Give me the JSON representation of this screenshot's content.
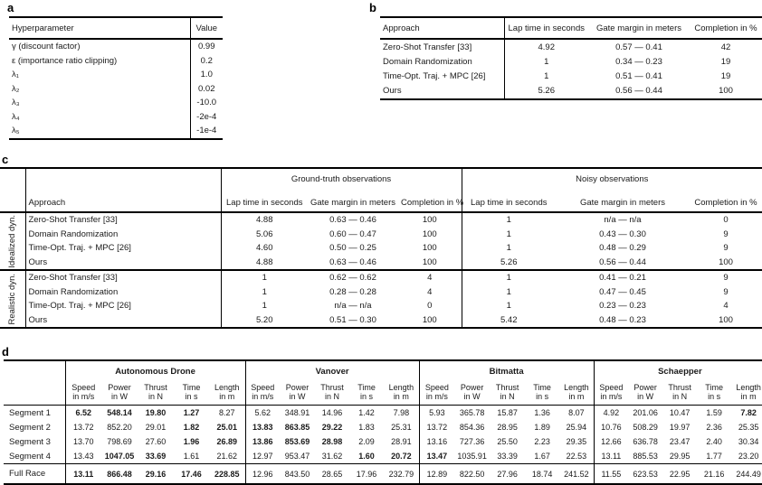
{
  "colors": {
    "text": "#1a1a1a",
    "rule": "#000000",
    "background": "#ffffff"
  },
  "panel_a": {
    "label": "a",
    "columns": [
      "Hyperparameter",
      "Value"
    ],
    "rows": [
      {
        "param": "γ (discount factor)",
        "value": "0.99"
      },
      {
        "param": "ε (importance ratio clipping)",
        "value": "0.2"
      },
      {
        "param": "λ₁",
        "value": "1.0"
      },
      {
        "param": "λ₂",
        "value": "0.02"
      },
      {
        "param": "λ₃",
        "value": "-10.0"
      },
      {
        "param": "λ₄",
        "value": "-2e-4"
      },
      {
        "param": "λ₅",
        "value": "-1e-4"
      }
    ]
  },
  "panel_b": {
    "label": "b",
    "columns": [
      "Approach",
      "Lap time in seconds",
      "Gate margin in meters",
      "Completion in %"
    ],
    "rows": [
      {
        "approach": "Zero-Shot Transfer [33]",
        "lap": "4.92",
        "gate": "0.57 — 0.41",
        "completion": "42"
      },
      {
        "approach": "Domain Randomization",
        "lap": "1",
        "gate": "0.34 — 0.23",
        "completion": "19"
      },
      {
        "approach": "Time-Opt. Traj. + MPC [26]",
        "lap": "1",
        "gate": "0.51 — 0.41",
        "completion": "19"
      },
      {
        "approach": "Ours",
        "lap": "5.26",
        "gate": "0.56 — 0.44",
        "completion": "100"
      }
    ]
  },
  "panel_c": {
    "label": "c",
    "approach_header": "Approach",
    "groups": [
      "Ground-truth observations",
      "Noisy observations"
    ],
    "sub_columns": [
      "Lap time in seconds",
      "Gate margin in meters",
      "Completion in %"
    ],
    "sections": [
      {
        "name": "Idealized dyn.",
        "rows": [
          {
            "approach": "Zero-Shot Transfer [33]",
            "gt": [
              "4.88",
              "0.63 — 0.46",
              "100"
            ],
            "noisy": [
              "1",
              "n/a — n/a",
              "0"
            ]
          },
          {
            "approach": "Domain Randomization",
            "gt": [
              "5.06",
              "0.60 — 0.47",
              "100"
            ],
            "noisy": [
              "1",
              "0.43 — 0.30",
              "9"
            ]
          },
          {
            "approach": "Time-Opt. Traj. + MPC [26]",
            "gt": [
              "4.60",
              "0.50 — 0.25",
              "100"
            ],
            "noisy": [
              "1",
              "0.48 — 0.29",
              "9"
            ]
          },
          {
            "approach": "Ours",
            "gt": [
              "4.88",
              "0.63 — 0.46",
              "100"
            ],
            "noisy": [
              "5.26",
              "0.56 — 0.44",
              "100"
            ]
          }
        ]
      },
      {
        "name": "Realistic dyn.",
        "rows": [
          {
            "approach": "Zero-Shot Transfer [33]",
            "gt": [
              "1",
              "0.62 — 0.62",
              "4"
            ],
            "noisy": [
              "1",
              "0.41 — 0.21",
              "9"
            ]
          },
          {
            "approach": "Domain Randomization",
            "gt": [
              "1",
              "0.28 — 0.28",
              "4"
            ],
            "noisy": [
              "1",
              "0.47 — 0.45",
              "9"
            ]
          },
          {
            "approach": "Time-Opt. Traj. + MPC [26]",
            "gt": [
              "1",
              "n/a — n/a",
              "0"
            ],
            "noisy": [
              "1",
              "0.23 — 0.23",
              "4"
            ]
          },
          {
            "approach": "Ours",
            "gt": [
              "5.20",
              "0.51 — 0.30",
              "100"
            ],
            "noisy": [
              "5.42",
              "0.48 — 0.23",
              "100"
            ]
          }
        ]
      }
    ]
  },
  "panel_d": {
    "label": "d",
    "pilots": [
      "Autonomous Drone",
      "Vanover",
      "Bitmatta",
      "Schaepper"
    ],
    "metrics": [
      {
        "name": "Speed",
        "unit": "in m/s"
      },
      {
        "name": "Power",
        "unit": "in W"
      },
      {
        "name": "Thrust",
        "unit": "in N"
      },
      {
        "name": "Time",
        "unit": "in s"
      },
      {
        "name": "Length",
        "unit": "in m"
      }
    ],
    "rows": [
      {
        "name": "Segment 1",
        "values": [
          "6.52",
          "548.14",
          "19.80",
          "1.27",
          "8.27",
          "5.62",
          "348.91",
          "14.96",
          "1.42",
          "7.98",
          "5.93",
          "365.78",
          "15.87",
          "1.36",
          "8.07",
          "4.92",
          "201.06",
          "10.47",
          "1.59",
          "7.82"
        ],
        "bold": [
          0,
          1,
          2,
          3,
          19
        ],
        "full_race": false
      },
      {
        "name": "Segment 2",
        "values": [
          "13.72",
          "852.20",
          "29.01",
          "1.82",
          "25.01",
          "13.83",
          "863.85",
          "29.22",
          "1.83",
          "25.31",
          "13.72",
          "854.36",
          "28.95",
          "1.89",
          "25.94",
          "10.76",
          "508.29",
          "19.97",
          "2.36",
          "25.35"
        ],
        "bold": [
          3,
          4,
          5,
          6,
          7
        ],
        "full_race": false
      },
      {
        "name": "Segment 3",
        "values": [
          "13.70",
          "798.69",
          "27.60",
          "1.96",
          "26.89",
          "13.86",
          "853.69",
          "28.98",
          "2.09",
          "28.91",
          "13.16",
          "727.36",
          "25.50",
          "2.23",
          "29.35",
          "12.66",
          "636.78",
          "23.47",
          "2.40",
          "30.34"
        ],
        "bold": [
          3,
          4,
          5,
          6,
          7
        ],
        "full_race": false
      },
      {
        "name": "Segment 4",
        "values": [
          "13.43",
          "1047.05",
          "33.69",
          "1.61",
          "21.62",
          "12.97",
          "953.47",
          "31.62",
          "1.60",
          "20.72",
          "13.47",
          "1035.91",
          "33.39",
          "1.67",
          "22.53",
          "13.11",
          "885.53",
          "29.95",
          "1.77",
          "23.20"
        ],
        "bold": [
          1,
          2,
          8,
          9,
          10
        ],
        "full_race": false
      },
      {
        "name": "Full Race",
        "values": [
          "13.11",
          "866.48",
          "29.16",
          "17.46",
          "228.85",
          "12.96",
          "843.50",
          "28.65",
          "17.96",
          "232.79",
          "12.89",
          "822.50",
          "27.96",
          "18.74",
          "241.52",
          "11.55",
          "623.53",
          "22.95",
          "21.16",
          "244.49"
        ],
        "bold": [
          0,
          1,
          2,
          3,
          4
        ],
        "full_race": true
      }
    ]
  }
}
